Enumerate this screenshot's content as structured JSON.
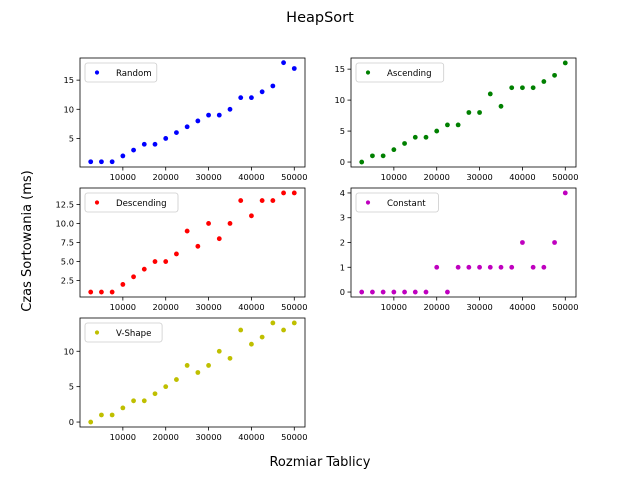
{
  "figure": {
    "title": "HeapSort",
    "xlabel": "Rozmiar Tablicy",
    "ylabel": "Czas Sortowania (ms)"
  },
  "chart_data": [
    {
      "type": "scatter",
      "xlim": [
        0,
        52500
      ],
      "ylim": [
        0.1,
        18.8
      ],
      "xticks": [
        10000,
        20000,
        30000,
        40000,
        50000
      ],
      "yticks": [
        5,
        10,
        15
      ],
      "grid": false,
      "legend_position": "top-left",
      "series": [
        {
          "name": "Random",
          "color": "#0000ff",
          "x": [
            2500,
            5000,
            7500,
            10000,
            12500,
            15000,
            17500,
            20000,
            22500,
            25000,
            27500,
            30000,
            32500,
            35000,
            37500,
            40000,
            42500,
            45000,
            47500,
            50000
          ],
          "y": [
            1,
            1,
            1,
            2,
            3,
            4,
            4,
            5,
            6,
            7,
            8,
            9,
            9,
            10,
            12,
            12,
            13,
            14,
            18,
            17
          ]
        }
      ]
    },
    {
      "type": "scatter",
      "xlim": [
        0,
        52500
      ],
      "ylim": [
        -0.8,
        16.8
      ],
      "xticks": [
        10000,
        20000,
        30000,
        40000,
        50000
      ],
      "yticks": [
        0,
        5,
        10,
        15
      ],
      "grid": false,
      "legend_position": "top-left",
      "series": [
        {
          "name": "Ascending",
          "color": "#008000",
          "x": [
            2500,
            5000,
            7500,
            10000,
            12500,
            15000,
            17500,
            20000,
            22500,
            25000,
            27500,
            30000,
            32500,
            35000,
            37500,
            40000,
            42500,
            45000,
            47500,
            50000
          ],
          "y": [
            0,
            1,
            1,
            2,
            3,
            4,
            4,
            5,
            6,
            6,
            8,
            8,
            11,
            9,
            12,
            12,
            12,
            13,
            14,
            16
          ]
        }
      ]
    },
    {
      "type": "scatter",
      "xlim": [
        0,
        52500
      ],
      "ylim": [
        0.35,
        14.65
      ],
      "xticks": [
        10000,
        20000,
        30000,
        40000,
        50000
      ],
      "yticks": [
        2.5,
        5.0,
        7.5,
        10.0,
        12.5
      ],
      "ytick_labels": [
        "2.5",
        "5.0",
        "7.5",
        "10.0",
        "12.5"
      ],
      "grid": false,
      "legend_position": "top-left",
      "series": [
        {
          "name": "Descending",
          "color": "#ff0000",
          "x": [
            2500,
            5000,
            7500,
            10000,
            12500,
            15000,
            17500,
            20000,
            22500,
            25000,
            27500,
            30000,
            32500,
            35000,
            37500,
            40000,
            42500,
            45000,
            47500,
            50000
          ],
          "y": [
            1,
            1,
            1,
            2,
            3,
            4,
            5,
            5,
            6,
            9,
            7,
            10,
            8,
            10,
            13,
            11,
            13,
            13,
            14,
            14
          ]
        }
      ]
    },
    {
      "type": "scatter",
      "xlim": [
        0,
        52500
      ],
      "ylim": [
        -0.2,
        4.2
      ],
      "xticks": [
        10000,
        20000,
        30000,
        40000,
        50000
      ],
      "yticks": [
        0,
        1,
        2,
        3,
        4
      ],
      "grid": false,
      "legend_position": "top-left",
      "series": [
        {
          "name": "Constant",
          "color": "#bf00bf",
          "x": [
            2500,
            5000,
            7500,
            10000,
            12500,
            15000,
            17500,
            20000,
            22500,
            25000,
            27500,
            30000,
            32500,
            35000,
            37500,
            40000,
            42500,
            45000,
            47500,
            50000
          ],
          "y": [
            0,
            0,
            0,
            0,
            0,
            0,
            0,
            1,
            0,
            1,
            1,
            1,
            1,
            1,
            1,
            2,
            1,
            1,
            2,
            4
          ]
        }
      ]
    },
    {
      "type": "scatter",
      "xlim": [
        0,
        52500
      ],
      "ylim": [
        -0.7,
        14.7
      ],
      "xticks": [
        10000,
        20000,
        30000,
        40000,
        50000
      ],
      "yticks": [
        0,
        5,
        10
      ],
      "grid": false,
      "legend_position": "top-left",
      "series": [
        {
          "name": "V-Shape",
          "color": "#bfbf00",
          "x": [
            2500,
            5000,
            7500,
            10000,
            12500,
            15000,
            17500,
            20000,
            22500,
            25000,
            27500,
            30000,
            32500,
            35000,
            37500,
            40000,
            42500,
            45000,
            47500,
            50000
          ],
          "y": [
            0,
            1,
            1,
            2,
            3,
            3,
            4,
            5,
            6,
            8,
            7,
            8,
            10,
            9,
            13,
            11,
            12,
            14,
            13,
            14
          ]
        }
      ]
    }
  ]
}
